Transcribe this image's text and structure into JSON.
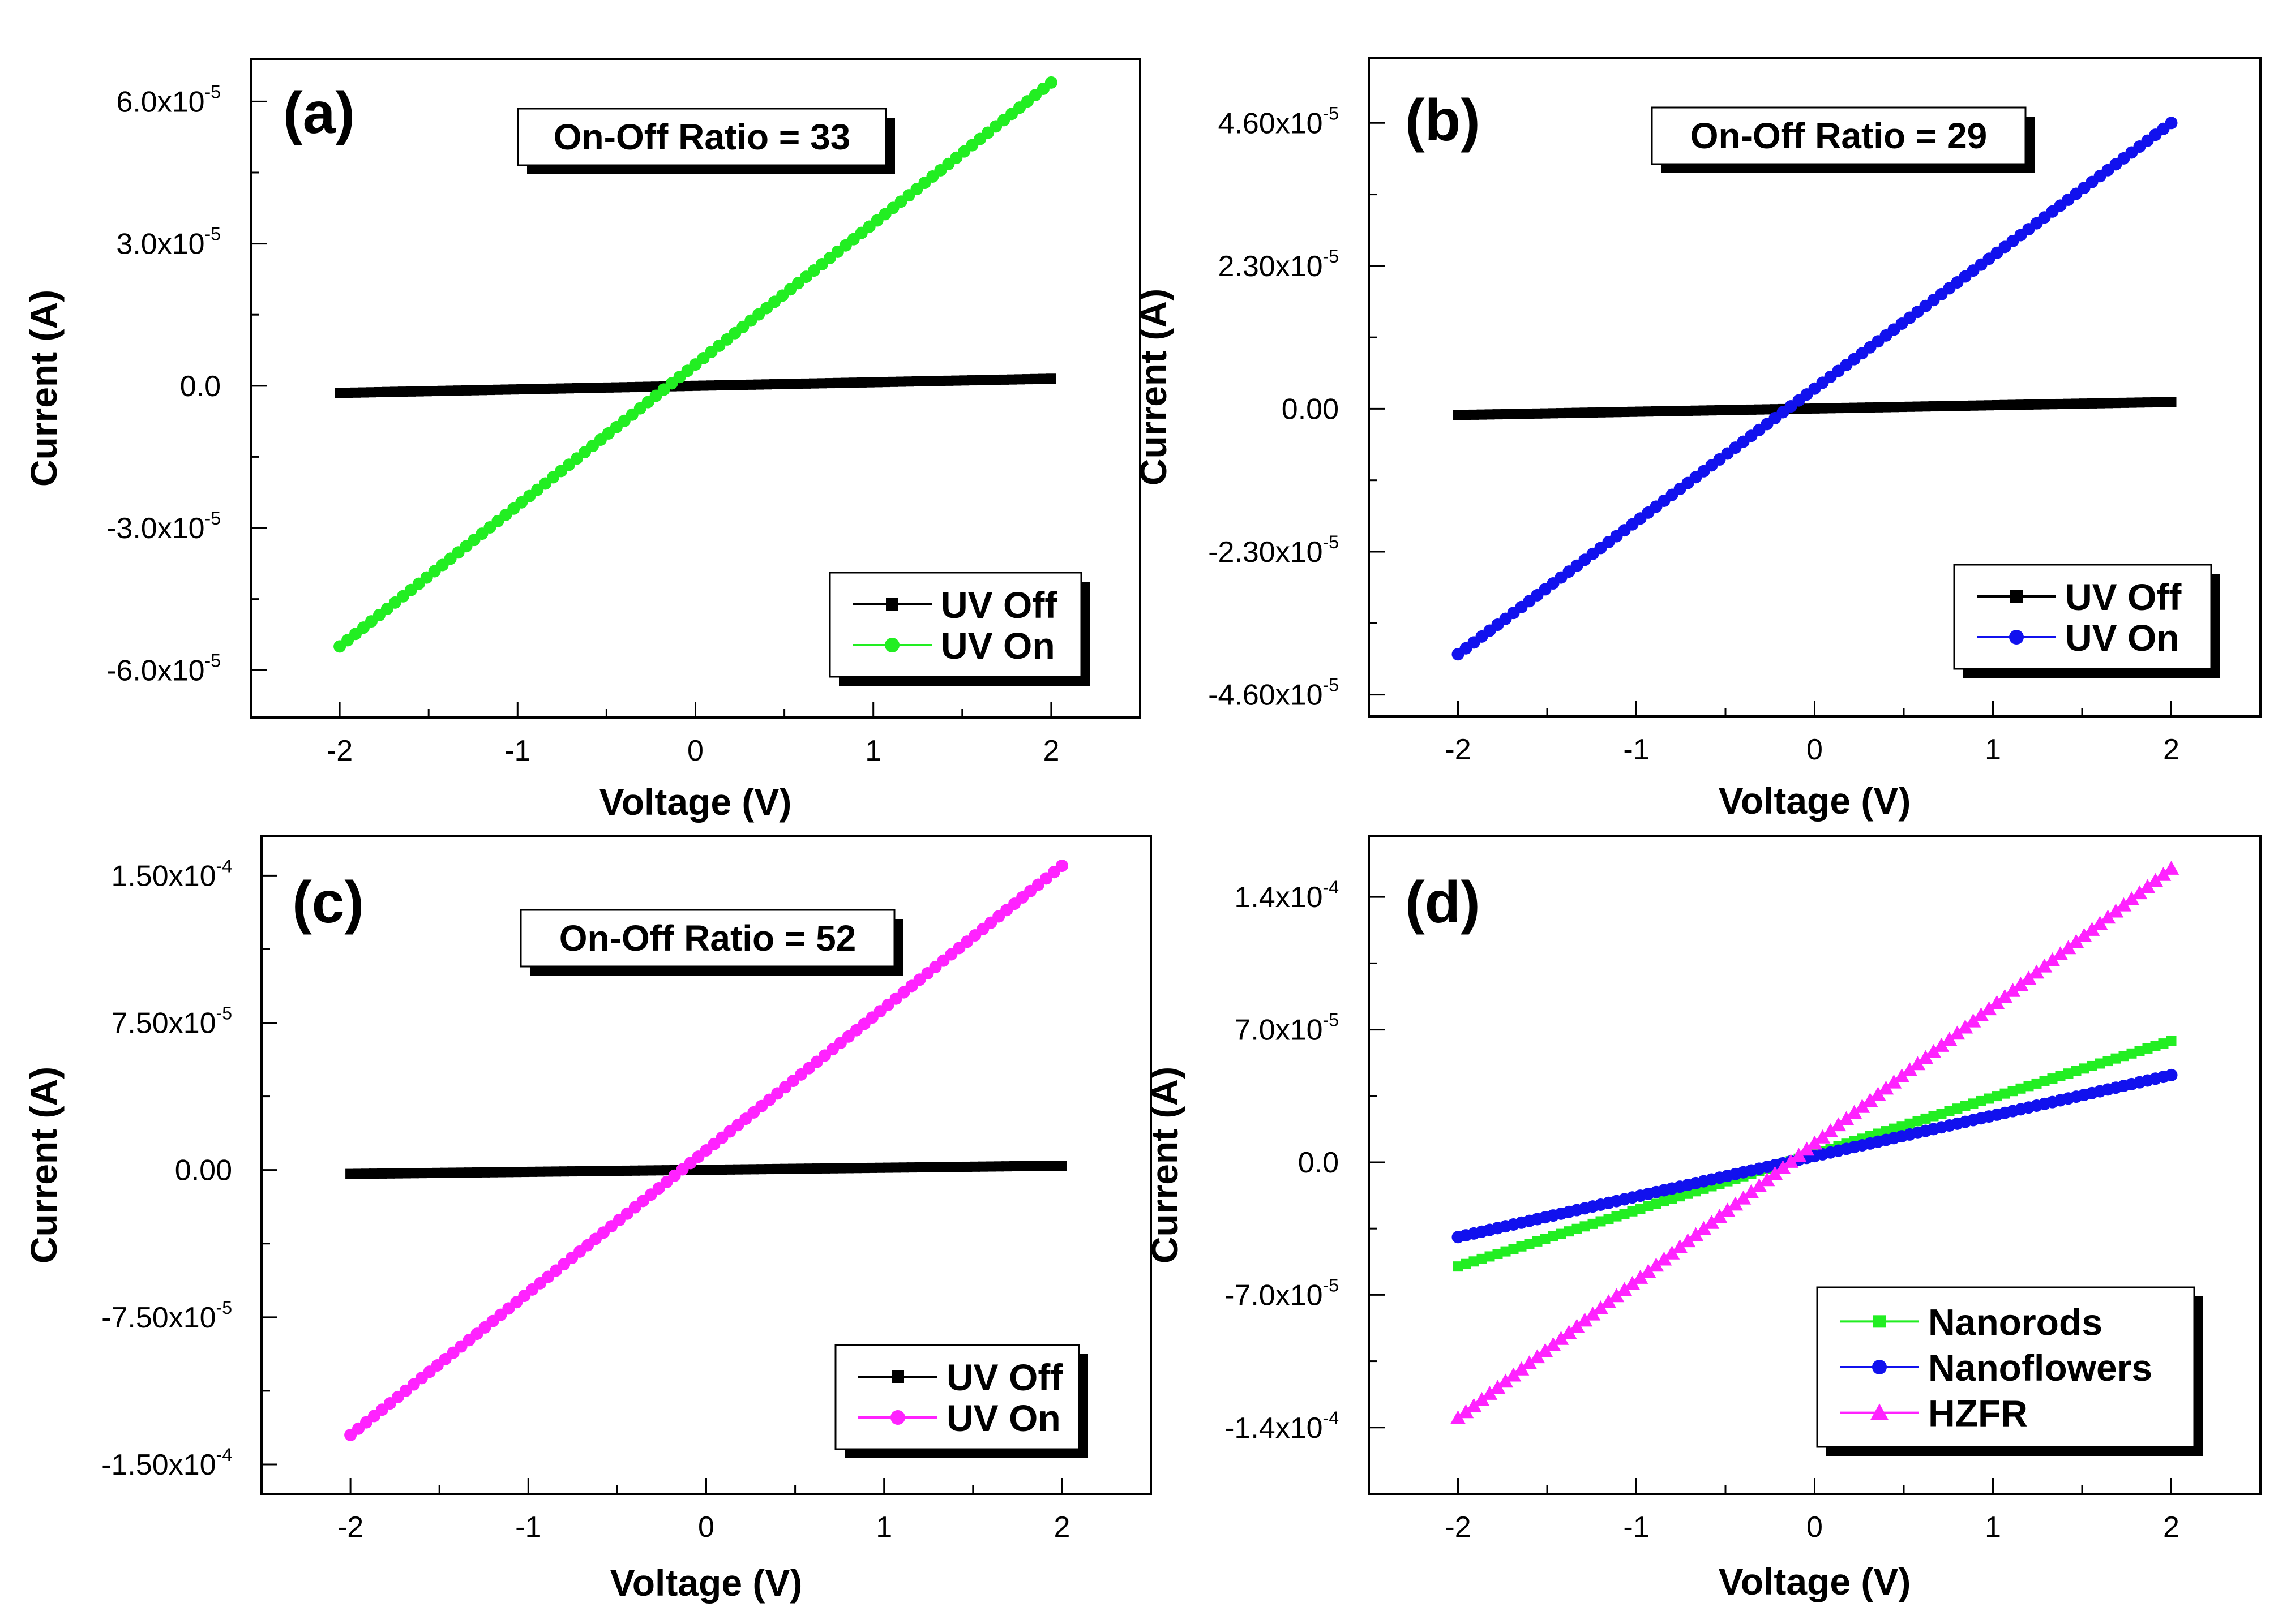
{
  "chart_data": [
    {
      "type": "line",
      "panel": "(a)",
      "annotation": "On-Off Ratio = 33",
      "xlabel": "Voltage (V)",
      "ylabel": "Current (A)",
      "xlim": [
        -2.5,
        2.5
      ],
      "ylim": [
        -7e-05,
        6.9e-05
      ],
      "xticks": [
        -2,
        -1,
        0,
        1,
        2
      ],
      "xtick_labels": [
        "-2",
        "-1",
        "0",
        "1",
        "2"
      ],
      "yticks": [
        -6e-05,
        -3e-05,
        0,
        3e-05,
        6e-05
      ],
      "ytick_labels": [
        {
          "m": "-6.0x10",
          "e": "-5"
        },
        {
          "m": "-3.0x10",
          "e": "-5"
        },
        {
          "m": "0.0",
          "e": ""
        },
        {
          "m": "3.0x10",
          "e": "-5"
        },
        {
          "m": "6.0x10",
          "e": "-5"
        }
      ],
      "legend_position": "bottom-right",
      "series": [
        {
          "name": "UV Off",
          "color": "#000000",
          "marker": "square",
          "x": [
            -2,
            2
          ],
          "y": [
            -1.5e-06,
            1.5e-06
          ]
        },
        {
          "name": "UV On",
          "color": "#22ee22",
          "marker": "circle",
          "x": [
            -2,
            2
          ],
          "y": [
            -5.5e-05,
            6.4e-05
          ]
        }
      ]
    },
    {
      "type": "line",
      "panel": "(b)",
      "annotation": "On-Off Ratio = 29",
      "xlabel": "Voltage (V)",
      "ylabel": "Current (A)",
      "xlim": [
        -2.5,
        2.5
      ],
      "ylim": [
        -4.95e-05,
        5.65e-05
      ],
      "xticks": [
        -2,
        -1,
        0,
        1,
        2
      ],
      "xtick_labels": [
        "-2",
        "-1",
        "0",
        "1",
        "2"
      ],
      "yticks": [
        -4.6e-05,
        -2.3e-05,
        0,
        2.3e-05,
        4.6e-05
      ],
      "ytick_labels": [
        {
          "m": "-4.60x10",
          "e": "-5"
        },
        {
          "m": "-2.30x10",
          "e": "-5"
        },
        {
          "m": "0.00",
          "e": ""
        },
        {
          "m": "2.30x10",
          "e": "-5"
        },
        {
          "m": "4.60x10",
          "e": "-5"
        }
      ],
      "legend_position": "bottom-right",
      "series": [
        {
          "name": "UV Off",
          "color": "#000000",
          "marker": "square",
          "x": [
            -2,
            2
          ],
          "y": [
            -1e-06,
            1.1e-06
          ]
        },
        {
          "name": "UV On",
          "color": "#1111ee",
          "marker": "circle",
          "x": [
            -2,
            2
          ],
          "y": [
            -3.95e-05,
            4.6e-05
          ]
        }
      ]
    },
    {
      "type": "line",
      "panel": "(c)",
      "annotation": "On-Off Ratio = 52",
      "xlabel": "Voltage (V)",
      "ylabel": "Current (A)",
      "xlim": [
        -2.5,
        2.5
      ],
      "ylim": [
        -0.000165,
        0.00017
      ],
      "xticks": [
        -2,
        -1,
        0,
        1,
        2
      ],
      "xtick_labels": [
        "-2",
        "-1",
        "0",
        "1",
        "2"
      ],
      "yticks": [
        -0.00015,
        -7.5e-05,
        0,
        7.5e-05,
        0.00015
      ],
      "ytick_labels": [
        {
          "m": "-1.50x10",
          "e": "-4"
        },
        {
          "m": "-7.50x10",
          "e": "-5"
        },
        {
          "m": "0.00",
          "e": ""
        },
        {
          "m": "7.50x10",
          "e": "-5"
        },
        {
          "m": "1.50x10",
          "e": "-4"
        }
      ],
      "legend_position": "bottom-right",
      "series": [
        {
          "name": "UV Off",
          "color": "#000000",
          "marker": "square",
          "x": [
            -2,
            2
          ],
          "y": [
            -2e-06,
            2.2e-06
          ]
        },
        {
          "name": "UV On",
          "color": "#ff22ff",
          "marker": "circle",
          "x": [
            -2,
            2
          ],
          "y": [
            -0.000135,
            0.000155
          ]
        }
      ]
    },
    {
      "type": "line",
      "panel": "(d)",
      "annotation": "",
      "xlabel": "Voltage (V)",
      "ylabel": "Current (A)",
      "xlim": [
        -2.5,
        2.5
      ],
      "ylim": [
        -0.000175,
        0.000172
      ],
      "xticks": [
        -2,
        -1,
        0,
        1,
        2
      ],
      "xtick_labels": [
        "-2",
        "-1",
        "0",
        "1",
        "2"
      ],
      "yticks": [
        -0.00014,
        -7e-05,
        0,
        7e-05,
        0.00014
      ],
      "ytick_labels": [
        {
          "m": "-1.4x10",
          "e": "-4"
        },
        {
          "m": "-7.0x10",
          "e": "-5"
        },
        {
          "m": "0.0",
          "e": ""
        },
        {
          "m": "7.0x10",
          "e": "-5"
        },
        {
          "m": "1.4x10",
          "e": "-4"
        }
      ],
      "legend_position": "bottom-right",
      "series": [
        {
          "name": "Nanorods",
          "color": "#22ee22",
          "marker": "square",
          "x": [
            -2,
            2
          ],
          "y": [
            -5.5e-05,
            6.4e-05
          ]
        },
        {
          "name": "Nanoflowers",
          "color": "#1111ee",
          "marker": "circle",
          "x": [
            -2,
            2
          ],
          "y": [
            -3.95e-05,
            4.6e-05
          ]
        },
        {
          "name": "HZFR",
          "color": "#ff22ff",
          "marker": "triangle",
          "x": [
            -2,
            2
          ],
          "y": [
            -0.000135,
            0.000155
          ]
        }
      ]
    }
  ]
}
